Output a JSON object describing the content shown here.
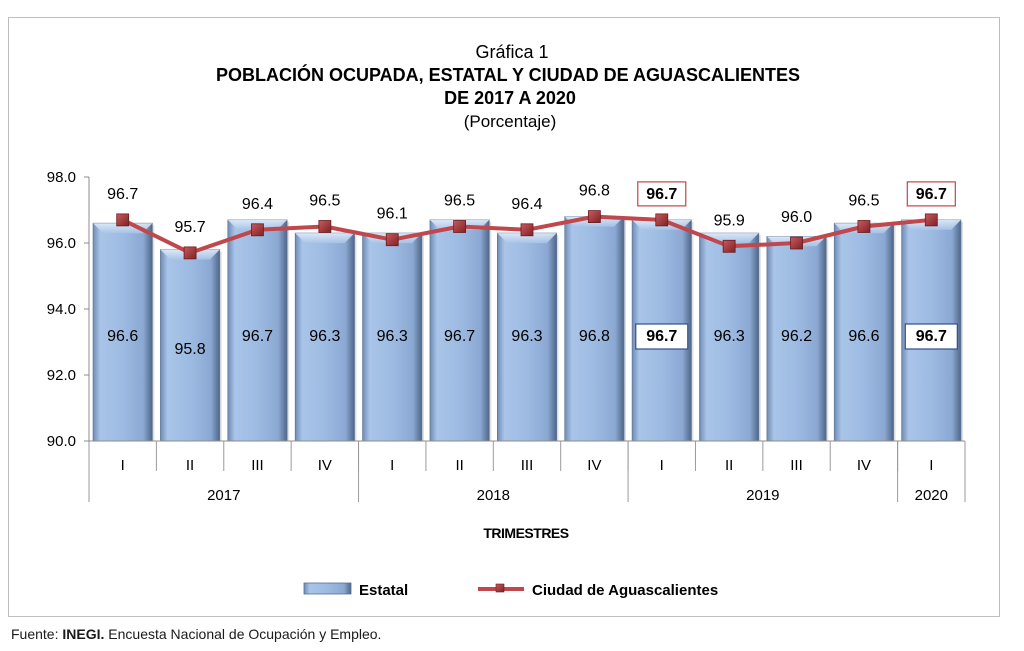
{
  "chart_data": {
    "type": "bar",
    "caption": "Gráfica 1",
    "title_line1": "POBLACIÓN OCUPADA, ESTATAL Y CIUDAD DE AGUASCALIENTES",
    "title_line2": "DE 2017 A 2020",
    "subtitle": "(Porcentaje)",
    "xlabel": "TRIMESTRES",
    "ylabel": "",
    "ylim": [
      90.0,
      98.0
    ],
    "yticks": [
      "90.0",
      "92.0",
      "94.0",
      "96.0",
      "98.0"
    ],
    "ytick_values": [
      90,
      92,
      94,
      96,
      98
    ],
    "categories": [
      "I",
      "II",
      "III",
      "IV",
      "I",
      "II",
      "III",
      "IV",
      "I",
      "II",
      "III",
      "IV",
      "I"
    ],
    "year_groups": [
      {
        "label": "2017",
        "count": 4
      },
      {
        "label": "2018",
        "count": 4
      },
      {
        "label": "2019",
        "count": 4
      },
      {
        "label": "2020",
        "count": 1
      }
    ],
    "series": [
      {
        "name": "Estatal",
        "type": "bar",
        "color": "#9ab9e0",
        "values": [
          96.6,
          95.8,
          96.7,
          96.3,
          96.3,
          96.7,
          96.3,
          96.8,
          96.7,
          96.3,
          96.2,
          96.6,
          96.7
        ],
        "labels": [
          "96.6",
          "95.8",
          "96.7",
          "96.3",
          "96.3",
          "96.7",
          "96.3",
          "96.8",
          "96.7",
          "96.3",
          "96.2",
          "96.6",
          "96.7"
        ],
        "highlighted": [
          8,
          12
        ],
        "highlight_color": "#2f4f8f"
      },
      {
        "name": "Ciudad de Aguascalientes",
        "type": "line",
        "color": "#c0474b",
        "values": [
          96.7,
          95.7,
          96.4,
          96.5,
          96.1,
          96.5,
          96.4,
          96.8,
          96.7,
          95.9,
          96.0,
          96.5,
          96.7
        ],
        "labels": [
          "96.7",
          "95.7",
          "96.4",
          "96.5",
          "96.1",
          "96.5",
          "96.4",
          "96.8",
          "96.7",
          "95.9",
          "96.0",
          "96.5",
          "96.7"
        ],
        "highlighted": [
          8,
          12
        ],
        "highlight_color": "#c0474b"
      }
    ],
    "legend": {
      "position": "bottom",
      "items": [
        "Estatal",
        "Ciudad de Aguascalientes"
      ]
    },
    "grid": false
  },
  "source": {
    "prefix": "Fuente: ",
    "org": "INEGI.",
    "text": " Encuesta Nacional de Ocupación y Empleo."
  }
}
